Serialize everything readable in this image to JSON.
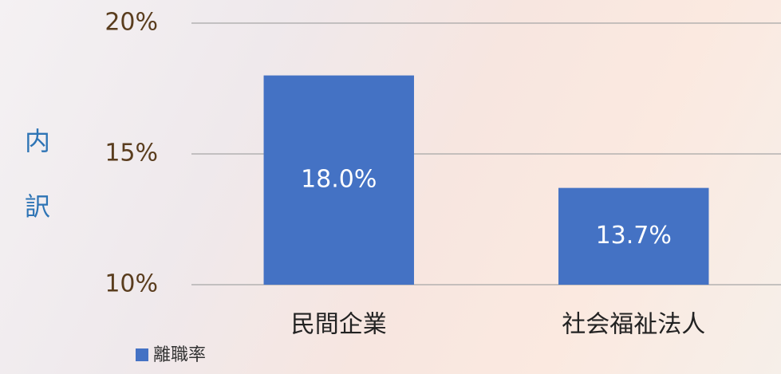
{
  "chart_data": {
    "type": "bar",
    "y_label": "内訳",
    "categories": [
      "民間企業",
      "社会福祉法人"
    ],
    "series": [
      {
        "name": "離職率",
        "color": "#4472c4",
        "values": [
          18.0,
          13.7
        ],
        "value_labels": [
          "18.0%",
          "13.7%"
        ]
      }
    ],
    "ylim": [
      10,
      20
    ],
    "yticks": [
      {
        "value": 10,
        "label": "10%"
      },
      {
        "value": 15,
        "label": "15%"
      },
      {
        "value": 20,
        "label": "20%"
      }
    ],
    "grid": true,
    "legend": "bottom-left"
  }
}
